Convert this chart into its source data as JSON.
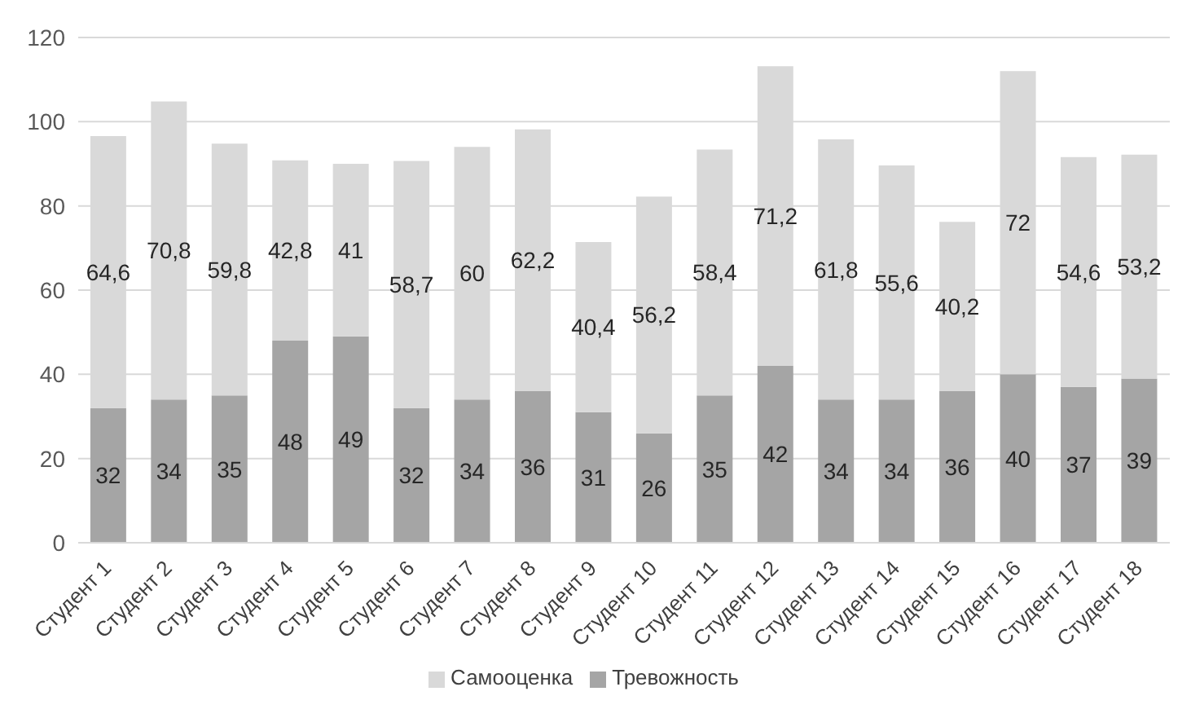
{
  "chart_data": {
    "type": "bar",
    "stacked": true,
    "categories": [
      "Студент 1",
      "Студент 2",
      "Студент 3",
      "Студент 4",
      "Студент 5",
      "Студент 6",
      "Студент 7",
      "Студент 8",
      "Студент 9",
      "Студент 10",
      "Студент 11",
      "Студент 12",
      "Студент 13",
      "Студент 14",
      "Студент 15",
      "Студент 16",
      "Студент 17",
      "Студент 18"
    ],
    "series": [
      {
        "name": "Тревожность",
        "color": "#a5a5a5",
        "values": [
          32,
          34,
          35,
          48,
          49,
          32,
          34,
          36,
          31,
          26,
          35,
          42,
          34,
          34,
          36,
          40,
          37,
          39
        ],
        "value_labels": [
          "32",
          "34",
          "35",
          "48",
          "49",
          "32",
          "34",
          "36",
          "31",
          "26",
          "35",
          "42",
          "34",
          "34",
          "36",
          "40",
          "37",
          "39"
        ]
      },
      {
        "name": "Самооценка",
        "color": "#d9d9d9",
        "values": [
          64.6,
          70.8,
          59.8,
          42.8,
          41,
          58.7,
          60,
          62.2,
          40.4,
          56.2,
          58.4,
          71.2,
          61.8,
          55.6,
          40.2,
          72,
          54.6,
          53.2
        ],
        "value_labels": [
          "64,6",
          "70,8",
          "59,8",
          "42,8",
          "41",
          "58,7",
          "60",
          "62,2",
          "40,4",
          "56,2",
          "58,4",
          "71,2",
          "61,8",
          "55,6",
          "40,2",
          "72",
          "54,6",
          "53,2"
        ]
      }
    ],
    "ylim": [
      0,
      120
    ],
    "yticks": [
      0,
      20,
      40,
      60,
      80,
      100,
      120
    ],
    "grid": "y",
    "legend": "bottom"
  }
}
